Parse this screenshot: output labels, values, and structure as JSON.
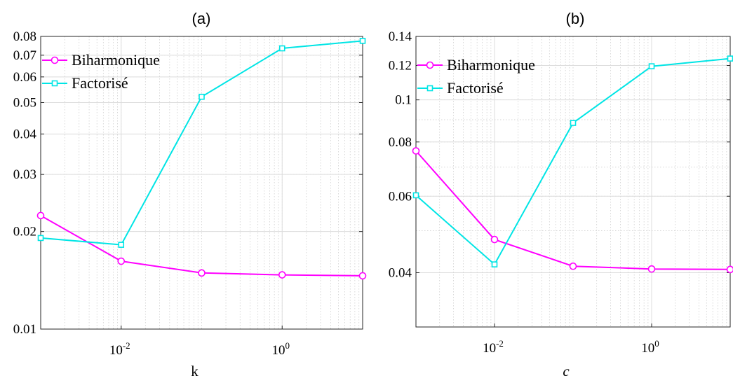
{
  "chart_data": [
    {
      "type": "line",
      "title": "(a)",
      "xlabel": "k",
      "ylabel": "",
      "xscale": "log",
      "yscale": "log",
      "xlim": [
        0.001,
        10
      ],
      "ylim": [
        0.01,
        0.08
      ],
      "x": [
        0.001,
        0.01,
        0.1,
        1,
        10
      ],
      "xticks": [
        {
          "value": 0.01,
          "base": "10",
          "exp": "-2"
        },
        {
          "value": 1,
          "base": "10",
          "exp": "0"
        }
      ],
      "yticks": [
        {
          "value": 0.01,
          "label": "0.01"
        },
        {
          "value": 0.02,
          "label": "0.02"
        },
        {
          "value": 0.03,
          "label": "0.03"
        },
        {
          "value": 0.04,
          "label": "0.04"
        },
        {
          "value": 0.05,
          "label": "0.05"
        },
        {
          "value": 0.06,
          "label": "0.06"
        },
        {
          "value": 0.07,
          "label": "0.07"
        },
        {
          "value": 0.08,
          "label": "0.08"
        }
      ],
      "grid": true,
      "legend_position": "top-left",
      "series": [
        {
          "name": "Biharmonique",
          "color": "#ff00ff",
          "marker": "circle",
          "values": [
            0.0224,
            0.0162,
            0.0149,
            0.0147,
            0.0146
          ]
        },
        {
          "name": "Factorisé",
          "color": "#00e5e5",
          "marker": "square",
          "values": [
            0.0191,
            0.0182,
            0.0521,
            0.0735,
            0.0775
          ]
        }
      ]
    },
    {
      "type": "line",
      "title": "(b)",
      "xlabel": "c",
      "ylabel": "",
      "xscale": "log",
      "yscale": "log",
      "xlim": [
        0.001,
        10
      ],
      "ylim": [
        0.03,
        0.14
      ],
      "x": [
        0.001,
        0.01,
        0.1,
        1,
        10
      ],
      "xticks": [
        {
          "value": 0.01,
          "base": "10",
          "exp": "-2"
        },
        {
          "value": 1,
          "base": "10",
          "exp": "0"
        }
      ],
      "yticks": [
        {
          "value": 0.04,
          "label": "0.04"
        },
        {
          "value": 0.06,
          "label": "0.06"
        },
        {
          "value": 0.08,
          "label": "0.08"
        },
        {
          "value": 0.1,
          "label": "0.1"
        },
        {
          "value": 0.12,
          "label": "0.12"
        },
        {
          "value": 0.14,
          "label": "0.14"
        }
      ],
      "grid": true,
      "legend_position": "top-left",
      "series": [
        {
          "name": "Biharmonique",
          "color": "#ff00ff",
          "marker": "circle",
          "values": [
            0.0763,
            0.0477,
            0.0414,
            0.0408,
            0.0407
          ]
        },
        {
          "name": "Factorisé",
          "color": "#00e5e5",
          "marker": "square",
          "values": [
            0.0603,
            0.0418,
            0.0885,
            0.1195,
            0.1245
          ]
        }
      ]
    }
  ]
}
